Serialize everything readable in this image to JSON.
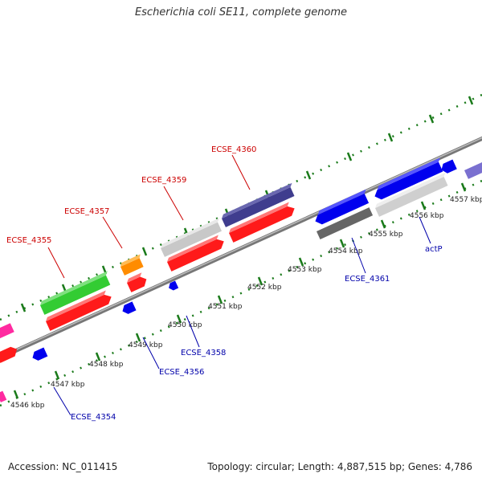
{
  "title": "Escherichia coli SE11, complete genome",
  "footer": {
    "accession": "Accession: NC_011415",
    "info": "Topology: circular; Length: 4,887,515 bp; Genes: 4,786"
  },
  "kbp_labels": [
    "4546 kbp",
    "4547 kbp",
    "4548 kbp",
    "4549 kbp",
    "4550 kbp",
    "4551 kbp",
    "4552 kbp",
    "4553 kbp",
    "4554 kbp",
    "4555 kbp",
    "4556 kbp",
    "4557 kbp"
  ],
  "gene_labels_top": [
    "ECSE_4355",
    "ECSE_4357",
    "ECSE_4359",
    "ECSE_4360"
  ],
  "gene_labels_bottom": [
    "ECSE_4354",
    "ECSE_4356",
    "ECSE_4358",
    "ECSE_4361",
    "actP"
  ],
  "colors": {
    "label_red": "#cc0000",
    "label_blue": "#0000aa",
    "tick_green": "#1a7a1a",
    "backbone": "#8c8c8c"
  }
}
